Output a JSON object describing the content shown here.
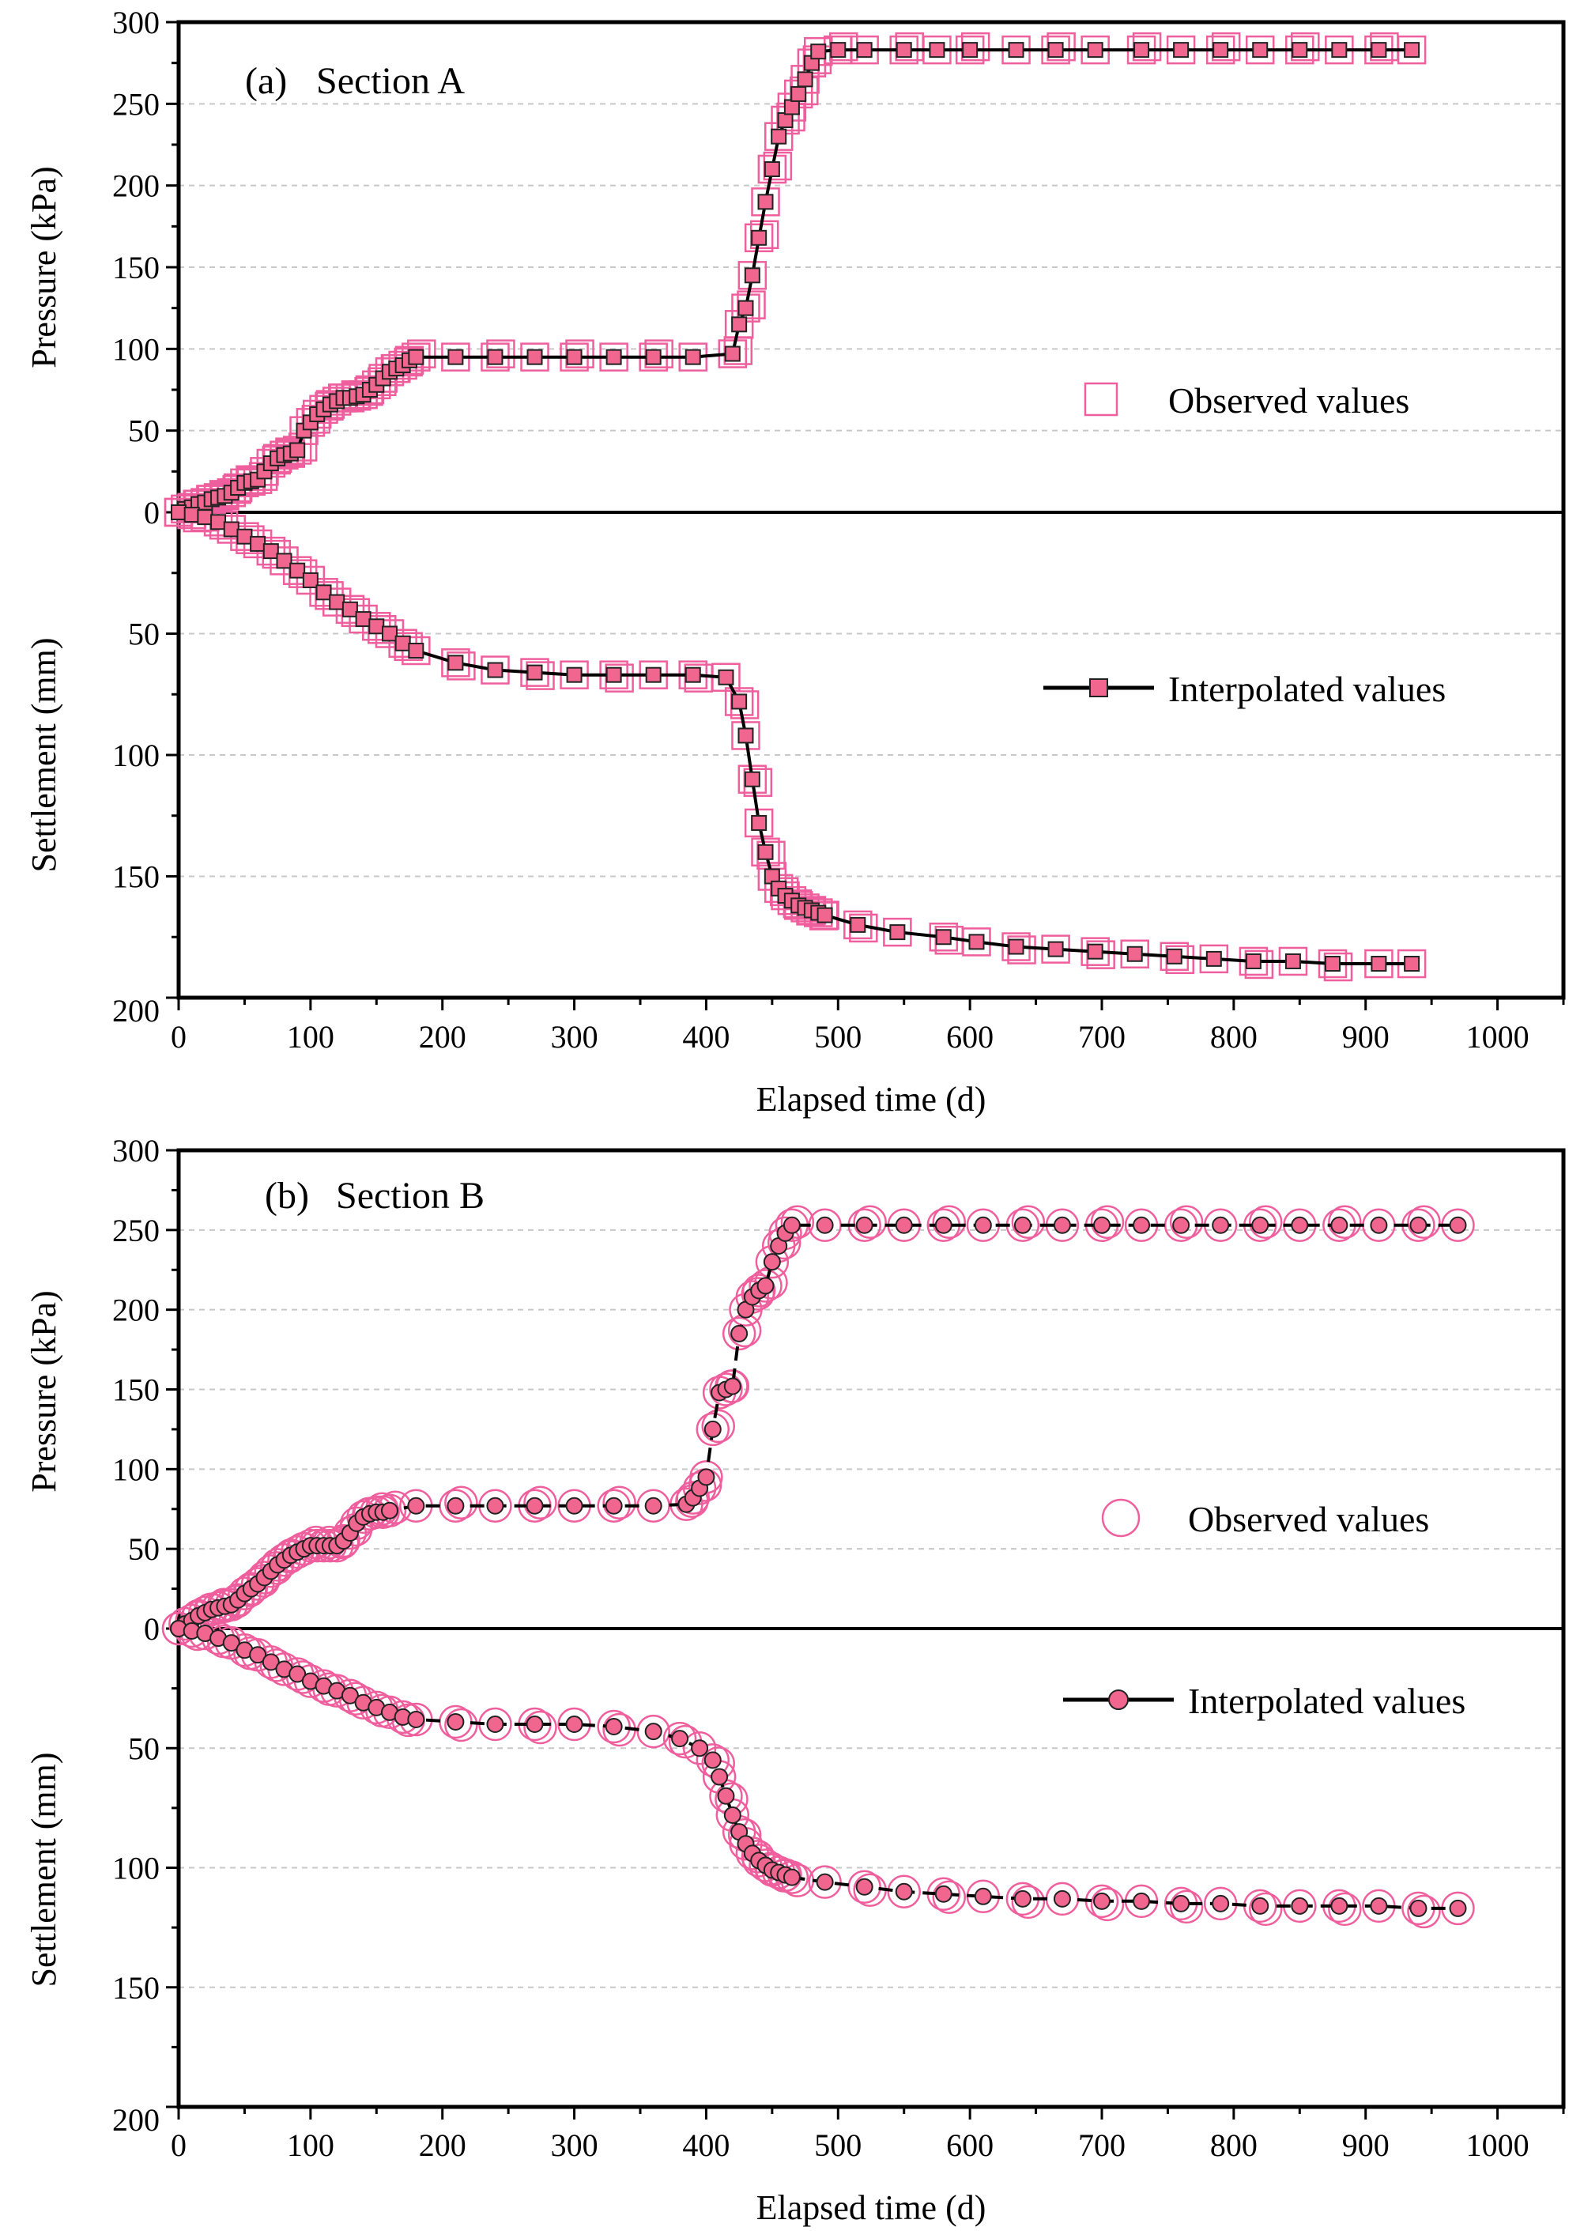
{
  "colors": {
    "marker_fill": "#f0668f",
    "marker_edge": "#222222",
    "observed_edge": "#ef5f9e",
    "line": "#000000",
    "grid": "#c8c8c8"
  },
  "chart_data": [
    {
      "id": "A",
      "type": "scatter",
      "panel_label": "(a)",
      "title": "Section A",
      "xlabel": "Elapsed time (d)",
      "ylabel_upper": "Pressure (kPa)",
      "ylabel_lower": "Settlement (mm)",
      "xlim": [
        0,
        1050
      ],
      "xticks": [
        "0",
        "100",
        "200",
        "300",
        "400",
        "500",
        "600",
        "700",
        "800",
        "900",
        "1000"
      ],
      "pressure_lim": [
        0,
        300
      ],
      "pressure_ticks": [
        "0",
        "50",
        "100",
        "150",
        "200",
        "250",
        "300"
      ],
      "settlement_lim": [
        0,
        200
      ],
      "settlement_ticks": [
        "50",
        "100",
        "150",
        "200"
      ],
      "marker": "square",
      "legend": {
        "observed": "Observed values",
        "interpolated": "Interpolated values"
      },
      "pressure_interpolated": {
        "x": [
          0,
          5,
          10,
          15,
          20,
          25,
          30,
          35,
          40,
          45,
          50,
          55,
          60,
          65,
          70,
          75,
          80,
          85,
          90,
          95,
          100,
          105,
          110,
          115,
          120,
          125,
          130,
          135,
          140,
          145,
          150,
          155,
          160,
          165,
          170,
          175,
          180,
          210,
          240,
          270,
          300,
          330,
          360,
          390,
          420,
          425,
          430,
          435,
          440,
          445,
          450,
          455,
          460,
          465,
          470,
          475,
          480,
          485,
          500,
          520,
          550,
          575,
          600,
          635,
          665,
          695,
          730,
          760,
          790,
          820,
          850,
          880,
          910,
          935
        ],
        "y": [
          0,
          2,
          3,
          5,
          6,
          8,
          9,
          10,
          12,
          15,
          18,
          19,
          20,
          25,
          30,
          33,
          35,
          36,
          38,
          50,
          55,
          60,
          63,
          66,
          68,
          70,
          70,
          71,
          72,
          75,
          78,
          82,
          86,
          88,
          90,
          93,
          95,
          95,
          95,
          95,
          95,
          95,
          95,
          95,
          97,
          115,
          125,
          145,
          168,
          190,
          210,
          230,
          240,
          248,
          256,
          265,
          275,
          282,
          283,
          283,
          283,
          283,
          283,
          283,
          283,
          283,
          283,
          283,
          283,
          283,
          283,
          283,
          283,
          283
        ]
      },
      "settlement_interpolated": {
        "x": [
          0,
          10,
          20,
          30,
          40,
          50,
          60,
          70,
          80,
          90,
          100,
          110,
          120,
          130,
          140,
          150,
          160,
          170,
          180,
          210,
          240,
          270,
          300,
          330,
          360,
          390,
          415,
          425,
          430,
          435,
          440,
          445,
          450,
          455,
          460,
          465,
          470,
          475,
          480,
          485,
          490,
          515,
          545,
          580,
          605,
          635,
          665,
          695,
          725,
          755,
          785,
          815,
          845,
          875,
          910,
          935
        ],
        "y": [
          0,
          1,
          2,
          4,
          7,
          10,
          13,
          16,
          20,
          24,
          28,
          33,
          37,
          40,
          44,
          47,
          50,
          54,
          57,
          62,
          65,
          66,
          67,
          67,
          67,
          67,
          68,
          78,
          92,
          110,
          128,
          140,
          150,
          155,
          158,
          160,
          162,
          163,
          164,
          165,
          166,
          170,
          173,
          175,
          177,
          179,
          180,
          181,
          182,
          183,
          184,
          185,
          185,
          186,
          186,
          186
        ]
      }
    },
    {
      "id": "B",
      "type": "scatter",
      "panel_label": "(b)",
      "title": "Section B",
      "xlabel": "Elapsed time (d)",
      "ylabel_upper": "Pressure (kPa)",
      "ylabel_lower": "Settlement (mm)",
      "xlim": [
        0,
        1050
      ],
      "xticks": [
        "0",
        "100",
        "200",
        "300",
        "400",
        "500",
        "600",
        "700",
        "800",
        "900",
        "1000"
      ],
      "pressure_lim": [
        0,
        300
      ],
      "pressure_ticks": [
        "0",
        "50",
        "100",
        "150",
        "200",
        "250",
        "300"
      ],
      "settlement_lim": [
        0,
        200
      ],
      "settlement_ticks": [
        "50",
        "100",
        "150",
        "200"
      ],
      "marker": "circle",
      "legend": {
        "observed": "Observed values",
        "interpolated": "Interpolated values"
      },
      "pressure_interpolated": {
        "x": [
          0,
          5,
          10,
          15,
          20,
          25,
          30,
          35,
          40,
          45,
          50,
          55,
          60,
          65,
          70,
          75,
          80,
          85,
          90,
          95,
          100,
          105,
          110,
          115,
          120,
          125,
          130,
          135,
          140,
          145,
          150,
          155,
          160,
          180,
          210,
          240,
          270,
          300,
          330,
          360,
          385,
          390,
          395,
          400,
          405,
          410,
          415,
          420,
          425,
          430,
          435,
          440,
          445,
          450,
          455,
          460,
          465,
          490,
          520,
          550,
          580,
          610,
          640,
          670,
          700,
          730,
          760,
          790,
          820,
          850,
          880,
          910,
          940,
          970
        ],
        "y": [
          0,
          3,
          5,
          8,
          10,
          12,
          13,
          14,
          15,
          18,
          22,
          25,
          28,
          32,
          36,
          40,
          43,
          46,
          48,
          50,
          52,
          52,
          52,
          52,
          52,
          55,
          60,
          66,
          70,
          72,
          73,
          73,
          74,
          77,
          77,
          77,
          77,
          77,
          77,
          77,
          78,
          82,
          88,
          95,
          125,
          148,
          150,
          152,
          185,
          200,
          208,
          212,
          215,
          230,
          240,
          248,
          253,
          253,
          253,
          253,
          253,
          253,
          253,
          253,
          253,
          253,
          253,
          253,
          253,
          253,
          253,
          253,
          253,
          253
        ]
      },
      "settlement_interpolated": {
        "x": [
          0,
          10,
          20,
          30,
          40,
          50,
          60,
          70,
          80,
          90,
          100,
          110,
          120,
          130,
          140,
          150,
          160,
          170,
          180,
          210,
          240,
          270,
          300,
          330,
          360,
          380,
          395,
          405,
          410,
          415,
          420,
          425,
          430,
          435,
          440,
          445,
          450,
          455,
          460,
          465,
          490,
          520,
          550,
          580,
          610,
          640,
          670,
          700,
          730,
          760,
          790,
          820,
          850,
          880,
          910,
          940,
          970
        ],
        "y": [
          0,
          1,
          2,
          4,
          6,
          9,
          11,
          14,
          17,
          19,
          22,
          24,
          26,
          28,
          31,
          33,
          35,
          37,
          38,
          39,
          40,
          40,
          40,
          41,
          43,
          46,
          50,
          55,
          62,
          70,
          78,
          85,
          90,
          94,
          97,
          99,
          101,
          102,
          103,
          104,
          106,
          108,
          110,
          111,
          112,
          113,
          113,
          114,
          114,
          115,
          115,
          116,
          116,
          116,
          116,
          117,
          117
        ]
      }
    }
  ]
}
